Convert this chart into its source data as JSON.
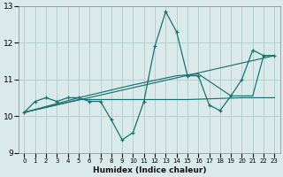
{
  "title": "",
  "xlabel": "Humidex (Indice chaleur)",
  "bg_color": "#daeaea",
  "grid_color": "#b0cccc",
  "line_color": "#1a7070",
  "xlim": [
    -0.5,
    23.5
  ],
  "ylim": [
    9.0,
    13.0
  ],
  "yticks": [
    9,
    10,
    11,
    12,
    13
  ],
  "xticks": [
    0,
    1,
    2,
    3,
    4,
    5,
    6,
    7,
    8,
    9,
    10,
    11,
    12,
    13,
    14,
    15,
    16,
    17,
    18,
    19,
    20,
    21,
    22,
    23
  ],
  "lines": [
    {
      "x": [
        0,
        1,
        2,
        3,
        4,
        5,
        6,
        7,
        8,
        9,
        10,
        11,
        12,
        13,
        14,
        15,
        16,
        17,
        18,
        19,
        20,
        21,
        22,
        23
      ],
      "y": [
        10.1,
        10.4,
        10.5,
        10.4,
        10.5,
        10.5,
        10.4,
        10.4,
        9.9,
        9.35,
        9.55,
        10.4,
        11.9,
        12.85,
        12.3,
        11.1,
        11.1,
        10.3,
        10.15,
        10.55,
        11.0,
        11.8,
        11.65,
        11.65
      ],
      "style": "line_marker"
    },
    {
      "x": [
        0,
        5,
        10,
        14,
        16,
        19,
        20,
        21,
        22,
        23
      ],
      "y": [
        10.1,
        10.5,
        10.85,
        11.1,
        11.15,
        10.55,
        10.55,
        10.55,
        11.65,
        11.65
      ],
      "style": "plain"
    },
    {
      "x": [
        0,
        23
      ],
      "y": [
        10.1,
        11.65
      ],
      "style": "plain"
    },
    {
      "x": [
        0,
        5,
        10,
        15,
        20,
        23
      ],
      "y": [
        10.1,
        10.45,
        10.45,
        10.45,
        10.5,
        10.5
      ],
      "style": "plain"
    }
  ]
}
